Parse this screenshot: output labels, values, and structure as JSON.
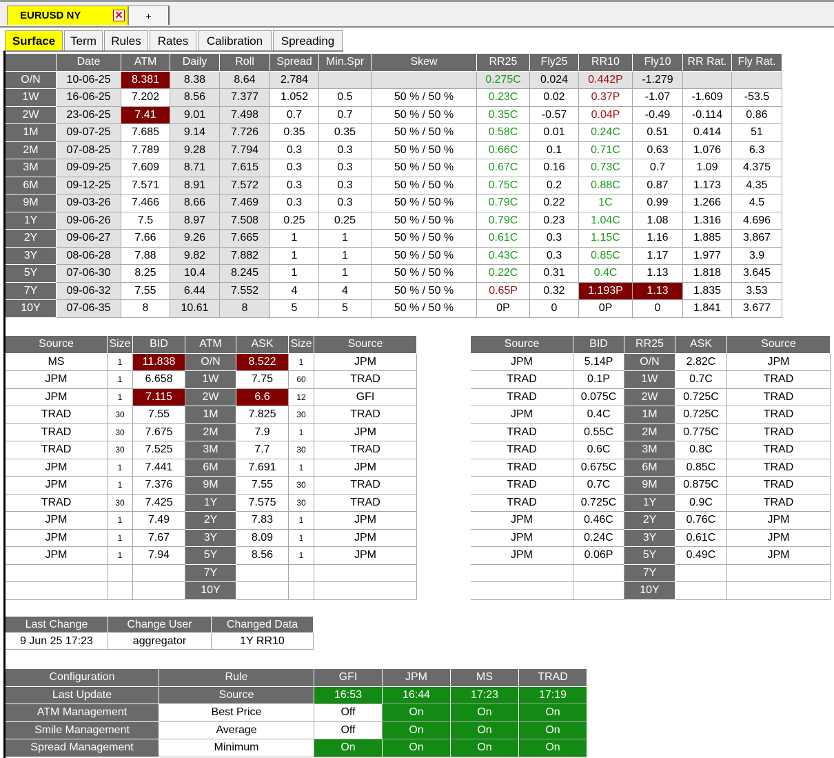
{
  "window_tabs": {
    "active_label": "EURUSD NY",
    "add_label": "+"
  },
  "colors": {
    "header": "#6a6a6a",
    "highlight": "#800000",
    "green_text": "#1a9a1a",
    "red_text": "#a01010",
    "on": "#138a13",
    "active_tab": "#ffff00"
  },
  "sub_tabs": [
    "Surface",
    "Term",
    "Rules",
    "Rates",
    "Calibration",
    "Spreading"
  ],
  "surface": {
    "headers": [
      "",
      "Date",
      "ATM",
      "Daily",
      "Roll",
      "Spread",
      "Min.Spr",
      "Skew",
      "RR25",
      "Fly25",
      "RR10",
      "Fly10",
      "RR Rat.",
      "Fly Rat."
    ],
    "rows": [
      [
        "O/N",
        "10-06-25",
        "8.381",
        "8.38",
        "8.64",
        "2.784",
        "",
        "",
        "0.275C",
        "0.024",
        "0.442P",
        "-1.279",
        "",
        ""
      ],
      [
        "1W",
        "16-06-25",
        "7.202",
        "8.56",
        "7.377",
        "1.052",
        "0.5",
        "50 % / 50 %",
        "0.23C",
        "0.02",
        "0.37P",
        "-1.07",
        "-1.609",
        "-53.5"
      ],
      [
        "2W",
        "23-06-25",
        "7.41",
        "9.01",
        "7.498",
        "0.7",
        "0.7",
        "50 % / 50 %",
        "0.35C",
        "-0.57",
        "0.04P",
        "-0.49",
        "-0.114",
        "0.86"
      ],
      [
        "1M",
        "09-07-25",
        "7.685",
        "9.14",
        "7.726",
        "0.35",
        "0.35",
        "50 % / 50 %",
        "0.58C",
        "0.01",
        "0.24C",
        "0.51",
        "0.414",
        "51"
      ],
      [
        "2M",
        "07-08-25",
        "7.789",
        "9.28",
        "7.794",
        "0.3",
        "0.3",
        "50 % / 50 %",
        "0.66C",
        "0.1",
        "0.71C",
        "0.63",
        "1.076",
        "6.3"
      ],
      [
        "3M",
        "09-09-25",
        "7.609",
        "8.71",
        "7.615",
        "0.3",
        "0.3",
        "50 % / 50 %",
        "0.67C",
        "0.16",
        "0.73C",
        "0.7",
        "1.09",
        "4.375"
      ],
      [
        "6M",
        "09-12-25",
        "7.571",
        "8.91",
        "7.572",
        "0.3",
        "0.3",
        "50 % / 50 %",
        "0.75C",
        "0.2",
        "0.88C",
        "0.87",
        "1.173",
        "4.35"
      ],
      [
        "9M",
        "09-03-26",
        "7.466",
        "8.66",
        "7.469",
        "0.3",
        "0.3",
        "50 % / 50 %",
        "0.79C",
        "0.22",
        "1C",
        "0.99",
        "1.266",
        "4.5"
      ],
      [
        "1Y",
        "09-06-26",
        "7.5",
        "8.97",
        "7.508",
        "0.25",
        "0.25",
        "50 % / 50 %",
        "0.79C",
        "0.23",
        "1.04C",
        "1.08",
        "1.316",
        "4.696"
      ],
      [
        "2Y",
        "09-06-27",
        "7.66",
        "9.26",
        "7.665",
        "1",
        "1",
        "50 % / 50 %",
        "0.61C",
        "0.3",
        "1.15C",
        "1.16",
        "1.885",
        "3.867"
      ],
      [
        "3Y",
        "08-06-28",
        "7.88",
        "9.82",
        "7.882",
        "1",
        "1",
        "50 % / 50 %",
        "0.43C",
        "0.3",
        "0.85C",
        "1.17",
        "1.977",
        "3.9"
      ],
      [
        "5Y",
        "07-06-30",
        "8.25",
        "10.4",
        "8.245",
        "1",
        "1",
        "50 % / 50 %",
        "0.22C",
        "0.31",
        "0.4C",
        "1.13",
        "1.818",
        "3.645"
      ],
      [
        "7Y",
        "09-06-32",
        "7.55",
        "6.44",
        "7.552",
        "4",
        "4",
        "50 % / 50 %",
        "0.65P",
        "0.32",
        "1.193P",
        "1.13",
        "1.835",
        "3.53"
      ],
      [
        "10Y",
        "07-06-35",
        "8",
        "10.61",
        "8",
        "5",
        "5",
        "50 % / 50 %",
        "0P",
        "0",
        "0P",
        "0",
        "1.841",
        "3.677"
      ]
    ]
  },
  "atm_quotes": {
    "headers": [
      "Source",
      "Size",
      "BID",
      "ATM",
      "ASK",
      "Size",
      "Source"
    ],
    "rows": [
      [
        "MS",
        "1",
        "11.838",
        "O/N",
        "8.522",
        "1",
        "JPM"
      ],
      [
        "JPM",
        "1",
        "6.658",
        "1W",
        "7.75",
        "60",
        "TRAD"
      ],
      [
        "JPM",
        "1",
        "7.115",
        "2W",
        "6.6",
        "12",
        "GFI"
      ],
      [
        "TRAD",
        "30",
        "7.55",
        "1M",
        "7.825",
        "30",
        "TRAD"
      ],
      [
        "TRAD",
        "30",
        "7.675",
        "2M",
        "7.9",
        "1",
        "JPM"
      ],
      [
        "TRAD",
        "30",
        "7.525",
        "3M",
        "7.7",
        "30",
        "TRAD"
      ],
      [
        "JPM",
        "1",
        "7.441",
        "6M",
        "7.691",
        "1",
        "JPM"
      ],
      [
        "JPM",
        "1",
        "7.376",
        "9M",
        "7.55",
        "30",
        "TRAD"
      ],
      [
        "TRAD",
        "30",
        "7.425",
        "1Y",
        "7.575",
        "30",
        "TRAD"
      ],
      [
        "JPM",
        "1",
        "7.49",
        "2Y",
        "7.83",
        "1",
        "JPM"
      ],
      [
        "JPM",
        "1",
        "7.67",
        "3Y",
        "8.09",
        "1",
        "JPM"
      ],
      [
        "JPM",
        "1",
        "7.94",
        "5Y",
        "8.56",
        "1",
        "JPM"
      ],
      [
        "",
        "",
        "",
        "7Y",
        "",
        "",
        ""
      ],
      [
        "",
        "",
        "",
        "10Y",
        "",
        "",
        ""
      ]
    ]
  },
  "rr_quotes": {
    "headers": [
      "Source",
      "BID",
      "RR25",
      "ASK",
      "Source"
    ],
    "rows": [
      [
        "JPM",
        "5.14P",
        "O/N",
        "2.82C",
        "JPM"
      ],
      [
        "TRAD",
        "0.1P",
        "1W",
        "0.7C",
        "TRAD"
      ],
      [
        "TRAD",
        "0.075C",
        "2W",
        "0.725C",
        "TRAD"
      ],
      [
        "JPM",
        "0.4C",
        "1M",
        "0.725C",
        "TRAD"
      ],
      [
        "TRAD",
        "0.55C",
        "2M",
        "0.775C",
        "TRAD"
      ],
      [
        "TRAD",
        "0.6C",
        "3M",
        "0.8C",
        "TRAD"
      ],
      [
        "TRAD",
        "0.675C",
        "6M",
        "0.85C",
        "TRAD"
      ],
      [
        "TRAD",
        "0.7C",
        "9M",
        "0.875C",
        "TRAD"
      ],
      [
        "TRAD",
        "0.725C",
        "1Y",
        "0.9C",
        "TRAD"
      ],
      [
        "JPM",
        "0.46C",
        "2Y",
        "0.76C",
        "JPM"
      ],
      [
        "JPM",
        "0.24C",
        "3Y",
        "0.61C",
        "JPM"
      ],
      [
        "JPM",
        "0.06P",
        "5Y",
        "0.49C",
        "JPM"
      ],
      [
        "",
        "",
        "7Y",
        "",
        ""
      ],
      [
        "",
        "",
        "10Y",
        "",
        ""
      ]
    ]
  },
  "change_log": {
    "headers": [
      "Last Change",
      "Change User",
      "Changed Data"
    ],
    "values": [
      "9 Jun 25 17:23",
      "aggregator",
      "1Y RR10"
    ]
  },
  "config": {
    "headers": [
      "Configuration",
      "Rule",
      "GFI",
      "JPM",
      "MS",
      "TRAD"
    ],
    "rows": [
      [
        "Last Update",
        "Source",
        "16:53",
        "16:44",
        "17:23",
        "17:19"
      ],
      [
        "ATM Management",
        "Best Price",
        "Off",
        "On",
        "On",
        "On"
      ],
      [
        "Smile Management",
        "Average",
        "Off",
        "On",
        "On",
        "On"
      ],
      [
        "Spread Management",
        "Minimum",
        "On",
        "On",
        "On",
        "On"
      ]
    ]
  }
}
